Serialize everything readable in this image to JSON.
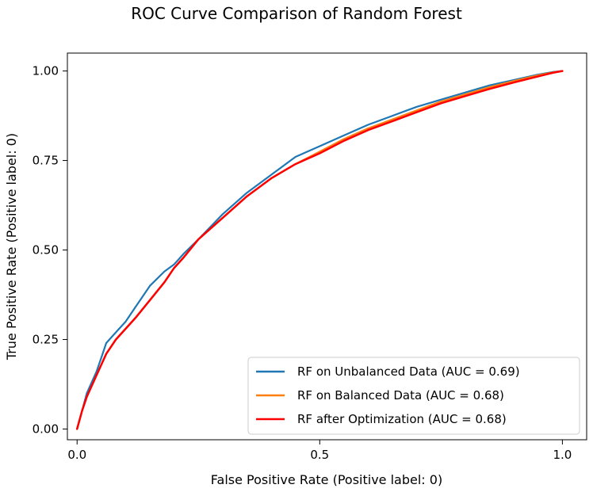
{
  "chart_data": {
    "type": "line",
    "title": "ROC Curve Comparison of Random Forest",
    "xlabel": "False Positive Rate (Positive label: 0)",
    "ylabel": "True Positive Rate (Positive label: 0)",
    "xlim": [
      -0.02,
      1.05
    ],
    "ylim": [
      -0.03,
      1.05
    ],
    "x_ticks": [
      0.0,
      0.5,
      1.0
    ],
    "x_tick_labels": [
      "0.0",
      "0.5",
      "1.0"
    ],
    "y_ticks": [
      0.0,
      0.25,
      0.5,
      0.75,
      1.0
    ],
    "y_tick_labels": [
      "0.00",
      "0.25",
      "0.50",
      "0.75",
      "1.00"
    ],
    "grid": false,
    "legend_position": "lower-right",
    "series": [
      {
        "name": "RF on Unbalanced Data (AUC = 0.69)",
        "color": "#1f77b4",
        "x": [
          0.0,
          0.01,
          0.02,
          0.03,
          0.04,
          0.05,
          0.06,
          0.08,
          0.1,
          0.12,
          0.15,
          0.18,
          0.2,
          0.22,
          0.25,
          0.3,
          0.35,
          0.4,
          0.45,
          0.5,
          0.55,
          0.6,
          0.65,
          0.7,
          0.75,
          0.8,
          0.85,
          0.9,
          0.95,
          0.98,
          1.0
        ],
        "y": [
          0.0,
          0.05,
          0.1,
          0.13,
          0.16,
          0.2,
          0.24,
          0.27,
          0.3,
          0.34,
          0.4,
          0.44,
          0.46,
          0.49,
          0.53,
          0.6,
          0.66,
          0.71,
          0.76,
          0.79,
          0.82,
          0.85,
          0.875,
          0.9,
          0.92,
          0.94,
          0.96,
          0.975,
          0.99,
          0.997,
          1.0
        ]
      },
      {
        "name": "RF on Balanced Data (AUC = 0.68)",
        "color": "#ff7f0e",
        "x": [
          0.0,
          0.01,
          0.02,
          0.03,
          0.04,
          0.05,
          0.06,
          0.08,
          0.1,
          0.12,
          0.15,
          0.18,
          0.2,
          0.22,
          0.25,
          0.3,
          0.35,
          0.4,
          0.45,
          0.5,
          0.55,
          0.6,
          0.65,
          0.7,
          0.75,
          0.8,
          0.85,
          0.9,
          0.95,
          0.98,
          1.0
        ],
        "y": [
          0.0,
          0.05,
          0.09,
          0.12,
          0.15,
          0.18,
          0.21,
          0.25,
          0.28,
          0.31,
          0.36,
          0.41,
          0.45,
          0.48,
          0.53,
          0.59,
          0.65,
          0.7,
          0.74,
          0.775,
          0.81,
          0.84,
          0.865,
          0.89,
          0.915,
          0.935,
          0.955,
          0.972,
          0.988,
          0.996,
          1.0
        ]
      },
      {
        "name": "RF after  Optimization (AUC = 0.68)",
        "color": "#ff0000",
        "x": [
          0.0,
          0.01,
          0.02,
          0.03,
          0.04,
          0.05,
          0.06,
          0.08,
          0.1,
          0.12,
          0.15,
          0.18,
          0.2,
          0.22,
          0.25,
          0.3,
          0.35,
          0.4,
          0.45,
          0.5,
          0.55,
          0.6,
          0.65,
          0.7,
          0.75,
          0.8,
          0.85,
          0.9,
          0.95,
          0.98,
          1.0
        ],
        "y": [
          0.0,
          0.05,
          0.09,
          0.12,
          0.15,
          0.18,
          0.21,
          0.25,
          0.28,
          0.31,
          0.36,
          0.41,
          0.45,
          0.48,
          0.53,
          0.59,
          0.65,
          0.7,
          0.74,
          0.77,
          0.805,
          0.835,
          0.86,
          0.885,
          0.91,
          0.93,
          0.95,
          0.968,
          0.985,
          0.995,
          1.0
        ]
      }
    ]
  }
}
